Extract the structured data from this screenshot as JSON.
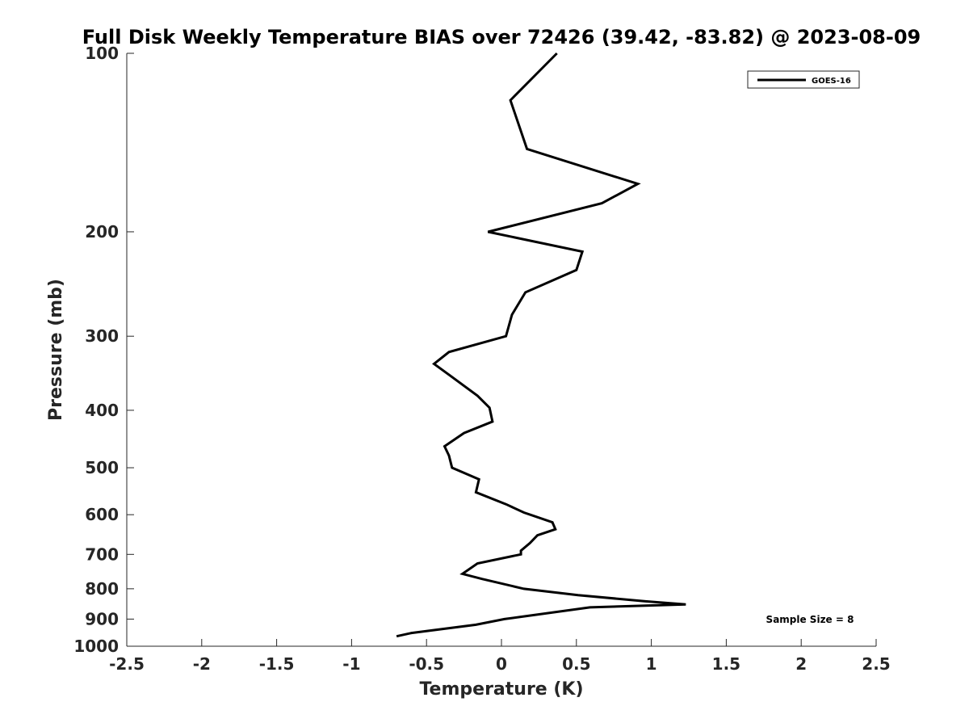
{
  "chart_data": {
    "type": "line",
    "title": "Full Disk Weekly Temperature BIAS over 72426 (39.42, -83.82) @ 2023-08-09",
    "xlabel": "Temperature (K)",
    "ylabel": "Pressure (mb)",
    "xlim": [
      -2.5,
      2.5
    ],
    "ylim": [
      100,
      1000
    ],
    "y_scale": "log",
    "y_reversed": true,
    "x_ticks": [
      -2.5,
      -2,
      -1.5,
      -1,
      -0.5,
      0,
      0.5,
      1,
      1.5,
      2,
      2.5
    ],
    "x_tick_labels": [
      "-2.5",
      "-2",
      "-1.5",
      "-1",
      "-0.5",
      "0",
      "0.5",
      "1",
      "1.5",
      "2",
      "2.5"
    ],
    "y_ticks": [
      100,
      200,
      300,
      400,
      500,
      600,
      700,
      800,
      900,
      1000
    ],
    "y_tick_labels": [
      "100",
      "200",
      "300",
      "400",
      "500",
      "600",
      "700",
      "800",
      "900",
      "1000"
    ],
    "grid": false,
    "legend_position": "top-right",
    "annotation": "Sample Size = 8",
    "series": [
      {
        "name": "GOES-16",
        "color": "#000000",
        "x": [
          0.37,
          0.06,
          0.17,
          0.91,
          0.67,
          -0.09,
          0.54,
          0.5,
          0.16,
          0.07,
          0.03,
          -0.35,
          -0.45,
          -0.34,
          -0.16,
          -0.08,
          -0.06,
          -0.25,
          -0.38,
          -0.35,
          -0.33,
          -0.15,
          -0.17,
          0.03,
          0.15,
          0.34,
          0.36,
          0.24,
          0.19,
          0.13,
          0.13,
          -0.16,
          -0.26,
          -0.13,
          0.15,
          0.51,
          0.96,
          1.23,
          0.59,
          0.02,
          -0.17,
          -0.6,
          -0.7
        ],
        "y": [
          100,
          120,
          145,
          166,
          179,
          200,
          216,
          232,
          253,
          276,
          300,
          319,
          334,
          350,
          378,
          396,
          418,
          437,
          460,
          477,
          500,
          523,
          550,
          576,
          595,
          618,
          635,
          650,
          670,
          690,
          700,
          725,
          755,
          770,
          800,
          820,
          840,
          850,
          860,
          900,
          920,
          950,
          962
        ]
      }
    ]
  }
}
